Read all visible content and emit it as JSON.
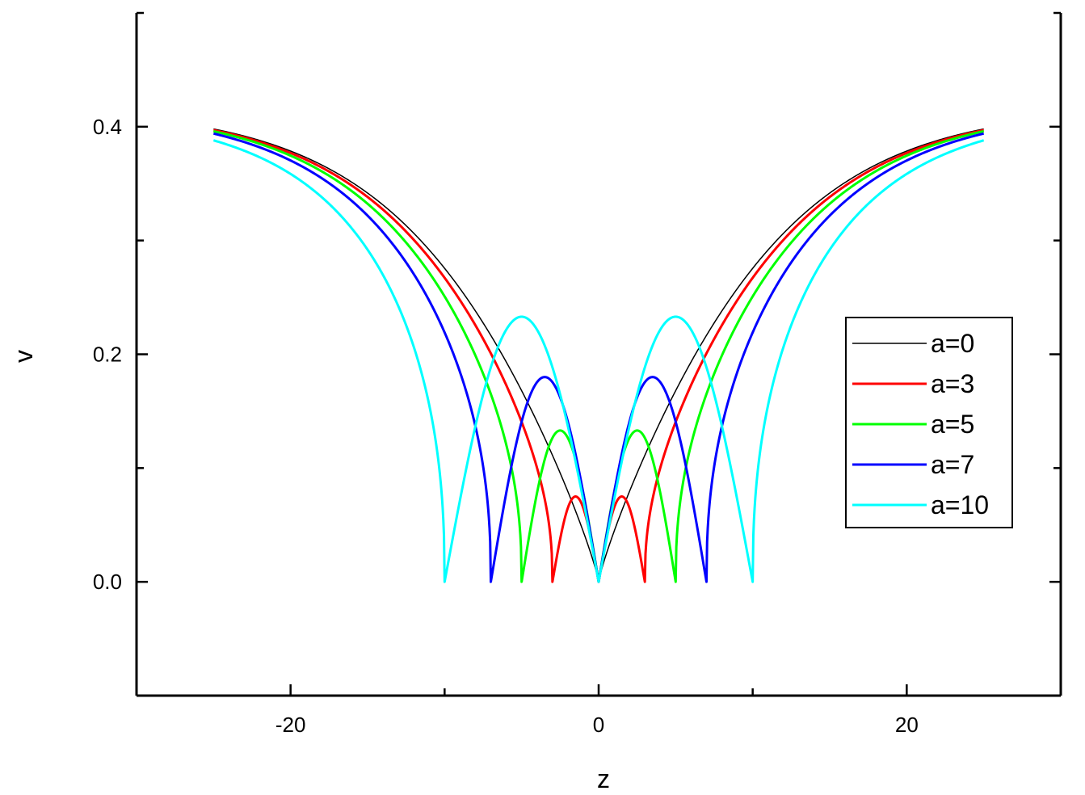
{
  "chart_data": {
    "type": "line",
    "title": "",
    "xlabel": "z",
    "ylabel": "v",
    "xlim": [
      -30,
      30
    ],
    "ylim": [
      -0.1,
      0.5
    ],
    "x_major_ticks": [
      -20,
      0,
      20
    ],
    "x_tick_labels": [
      "-20",
      "0",
      "20"
    ],
    "x_minor_ticks": [
      -10,
      10
    ],
    "y_major_ticks": [
      0.0,
      0.2,
      0.4
    ],
    "y_tick_labels": [
      "0.0",
      "0.2",
      "0.4"
    ],
    "y_minor_ticks": [
      -0.1,
      0.1,
      0.3,
      0.5
    ],
    "grid": false,
    "legend_position": "right",
    "colors": {
      "axis": "#000000",
      "background": "#ffffff"
    },
    "series": [
      {
        "name": "a=0",
        "a": 0,
        "color": "#000000",
        "width": 1.5,
        "x": [
          -25,
          -20,
          -15,
          -10,
          -5,
          -3,
          -1.5,
          0,
          1.5,
          3,
          5,
          10,
          15,
          20,
          25
        ],
        "y": [
          0.398,
          0.376,
          0.342,
          0.284,
          0.182,
          0.125,
          0.07,
          0.0,
          0.07,
          0.125,
          0.182,
          0.284,
          0.342,
          0.376,
          0.398
        ]
      },
      {
        "name": "a=3",
        "a": 3,
        "color": "#ff0000",
        "width": 3,
        "x": [
          -25,
          -20,
          -15,
          -10,
          -7,
          -5,
          -3,
          -1.5,
          0,
          1.5,
          3,
          5,
          7,
          10,
          15,
          20,
          25
        ],
        "y": [
          0.397,
          0.374,
          0.336,
          0.266,
          0.195,
          0.118,
          0.0,
          0.075,
          0.0,
          0.075,
          0.0,
          0.118,
          0.195,
          0.266,
          0.336,
          0.374,
          0.397
        ]
      },
      {
        "name": "a=5",
        "a": 5,
        "color": "#00ff00",
        "width": 3,
        "x": [
          -25,
          -20,
          -15,
          -10,
          -7,
          -5,
          -2.5,
          0,
          2.5,
          5,
          7,
          10,
          15,
          20,
          25
        ],
        "y": [
          0.396,
          0.371,
          0.328,
          0.242,
          0.13,
          0.0,
          0.133,
          0.0,
          0.133,
          0.0,
          0.13,
          0.242,
          0.328,
          0.371,
          0.396
        ]
      },
      {
        "name": "a=7",
        "a": 7,
        "color": "#0000ff",
        "width": 3,
        "x": [
          -25,
          -20,
          -15,
          -10,
          -7,
          -3.5,
          0,
          3.5,
          7,
          10,
          15,
          20,
          25
        ],
        "y": [
          0.394,
          0.367,
          0.315,
          0.19,
          0.0,
          0.18,
          0.0,
          0.18,
          0.0,
          0.19,
          0.315,
          0.367,
          0.394
        ]
      },
      {
        "name": "a=10",
        "a": 10,
        "color": "#00ffff",
        "width": 3,
        "x": [
          -25,
          -20,
          -15,
          -10,
          -5,
          0,
          5,
          10,
          15,
          20,
          25
        ],
        "y": [
          0.388,
          0.355,
          0.275,
          0.0,
          0.233,
          0.0,
          0.233,
          0.0,
          0.275,
          0.355,
          0.388
        ]
      }
    ]
  }
}
